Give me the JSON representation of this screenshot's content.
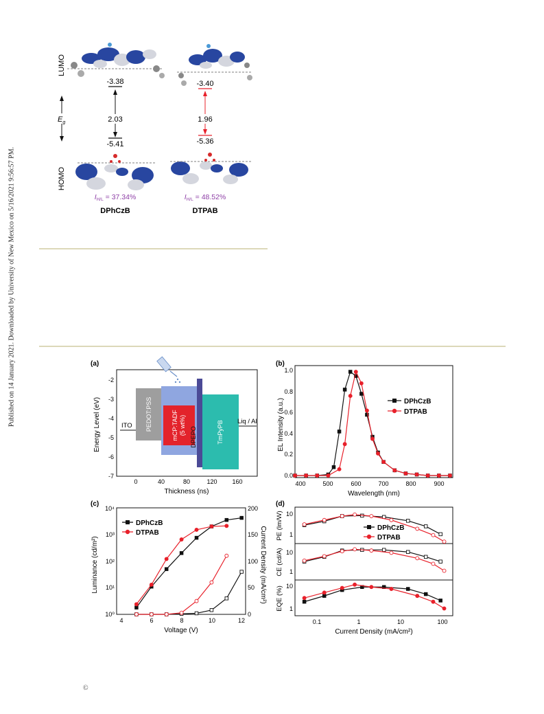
{
  "sidebar_note": "Published on 14 January 2021. Downloaded by University of New Mexico on 5/16/2021 9:56:57 PM.",
  "copyright_symbol": "©",
  "orbital_figure": {
    "lumo_label": "LUMO",
    "homo_label": "HOMO",
    "eg_label": "E",
    "eg_sub": "g",
    "molecules": [
      {
        "name": "DPhCzB",
        "lumo": "-3.38",
        "homo": "-5.41",
        "gap": "2.03",
        "ihl_prefix": "I",
        "ihl_sub": "H/L",
        "ihl_value": " = 37.34%",
        "color": "#111111"
      },
      {
        "name": "DTPAB",
        "lumo": "-3.40",
        "homo": "-5.36",
        "gap": "1.96",
        "ihl_prefix": "I",
        "ihl_sub": "H/L",
        "ihl_value": " = 48.52%",
        "color": "#e8202a"
      }
    ],
    "ihl_color": "#8e3fa6"
  },
  "device_figure": {
    "panel_a": {
      "label": "(a)",
      "ylabel": "Energy Level (eV)",
      "xlabel": "Thickness (ns)",
      "yticks": [
        "-2",
        "-3",
        "-4",
        "-5",
        "-6",
        "-7"
      ],
      "xticks": [
        "0",
        "40",
        "80",
        "120",
        "160"
      ],
      "ito": "ITO",
      "liq": "Liq / Al",
      "layers": {
        "pedot": "PEDOT:PSS",
        "mcp_1": "mCP:TADF",
        "mcp_2": "(5 wt%)",
        "dpepo": "DPEPO",
        "tmpypb": "TmPyPB"
      }
    },
    "panel_b": {
      "label": "(b)",
      "ylabel": "EL Intensity (a.u.)",
      "xlabel": "Wavelength (nm)",
      "yticks": [
        "0.0",
        "0.2",
        "0.4",
        "0.6",
        "0.8",
        "1.0"
      ],
      "xticks": [
        "400",
        "500",
        "600",
        "700",
        "800",
        "900"
      ],
      "legend": [
        "DPhCzB",
        "DTPAB"
      ]
    },
    "panel_c": {
      "label": "(c)",
      "ylabel_left": "Luminance (cd/m²)",
      "ylabel_right": "Current Density (mA/cm²)",
      "xlabel": "Voltage (V)",
      "xticks": [
        "4",
        "6",
        "8",
        "10",
        "12"
      ],
      "yticks_left": [
        "10⁰",
        "10¹",
        "10²",
        "10³",
        "10⁴"
      ],
      "yticks_right": [
        "0",
        "50",
        "100",
        "150",
        "200"
      ],
      "legend": [
        "DPhCzB",
        "DTPAB"
      ]
    },
    "panel_d": {
      "label": "(d)",
      "ylabels": [
        "PE (lm/W)",
        "CE (cd/A)",
        "EQE (%)"
      ],
      "xlabel": "Current Density (mA/cm²)",
      "xticks": [
        "0.1",
        "1",
        "10",
        "100"
      ],
      "yticks": [
        "1",
        "10"
      ],
      "legend": [
        "DPhCzB",
        "DTPAB"
      ]
    }
  },
  "chart_data": [
    {
      "type": "line",
      "panel": "(b)",
      "xlabel": "Wavelength (nm)",
      "ylabel": "EL Intensity (a.u.)",
      "xlim": [
        380,
        950
      ],
      "ylim": [
        0,
        1.0
      ],
      "series": [
        {
          "name": "DPhCzB",
          "color": "#111111",
          "x": [
            380,
            420,
            460,
            500,
            520,
            540,
            560,
            580,
            600,
            620,
            640,
            660,
            680,
            700,
            740,
            780,
            820,
            860,
            900,
            940
          ],
          "y": [
            0.0,
            0.0,
            0.0,
            0.01,
            0.08,
            0.42,
            0.82,
            0.99,
            0.95,
            0.78,
            0.58,
            0.37,
            0.22,
            0.13,
            0.05,
            0.02,
            0.01,
            0.0,
            0.0,
            0.0
          ]
        },
        {
          "name": "DTPAB",
          "color": "#e8202a",
          "x": [
            380,
            420,
            460,
            500,
            540,
            560,
            580,
            600,
            620,
            640,
            660,
            680,
            700,
            740,
            780,
            820,
            860,
            900,
            940
          ],
          "y": [
            0.0,
            0.0,
            0.0,
            0.0,
            0.06,
            0.3,
            0.76,
            0.99,
            0.88,
            0.62,
            0.35,
            0.21,
            0.13,
            0.05,
            0.02,
            0.01,
            0.0,
            0.0,
            0.0
          ]
        }
      ]
    },
    {
      "type": "line",
      "panel": "(c)",
      "xlabel": "Voltage (V)",
      "ylabel": "Luminance (cd/m²)",
      "y2label": "Current Density (mA/cm²)",
      "xlim": [
        4,
        12.5
      ],
      "ylim_log": [
        1,
        10000
      ],
      "y2lim": [
        0,
        200
      ],
      "series": [
        {
          "name": "DPhCzB luminance",
          "color": "#111111",
          "filled": true,
          "x": [
            5,
            6,
            7,
            8,
            9,
            10,
            11,
            12
          ],
          "y": [
            1.8,
            11,
            50,
            200,
            750,
            2000,
            3500,
            4200
          ]
        },
        {
          "name": "DTPAB luminance",
          "color": "#e8202a",
          "filled": true,
          "x": [
            5,
            6,
            7,
            8,
            9,
            10,
            11
          ],
          "y": [
            2.4,
            13,
            120,
            650,
            1500,
            2000,
            2100
          ]
        },
        {
          "name": "DPhCzB current density",
          "color": "#111111",
          "filled": false,
          "axis": "right",
          "x": [
            5,
            6,
            7,
            8,
            9,
            10,
            11,
            12
          ],
          "y": [
            0,
            0,
            0,
            1,
            2,
            8,
            30,
            80
          ]
        },
        {
          "name": "DTPAB current density",
          "color": "#e8202a",
          "filled": false,
          "axis": "right",
          "x": [
            5,
            6,
            7,
            8,
            9,
            10,
            11
          ],
          "y": [
            0,
            0,
            0,
            3,
            25,
            60,
            110
          ]
        }
      ]
    },
    {
      "type": "line",
      "panel": "(d)",
      "xlabel": "Current Density (mA/cm²)",
      "xscale": "log",
      "xlim": [
        0.04,
        150
      ],
      "subplots": [
        {
          "ylabel": "PE (lm/W)",
          "ylim_log": [
            0.5,
            15
          ],
          "series": [
            {
              "name": "DPhCzB",
              "color": "#111111",
              "x": [
                0.05,
                0.15,
                0.4,
                1.2,
                4,
                15,
                40,
                90
              ],
              "y": [
                2.8,
                4,
                6.5,
                6.8,
                6,
                4.2,
                2.5,
                1.2
              ]
            },
            {
              "name": "DTPAB",
              "color": "#e8202a",
              "x": [
                0.05,
                0.15,
                0.4,
                0.8,
                2,
                6,
                25,
                60,
                110
              ],
              "y": [
                3,
                4.5,
                6.5,
                7.5,
                6.5,
                4.5,
                2,
                1.1,
                0.6
              ]
            }
          ]
        },
        {
          "ylabel": "CE (cd/A)",
          "ylim_log": [
            0.8,
            30
          ],
          "series": [
            {
              "name": "DPhCzB",
              "color": "#111111",
              "x": [
                0.05,
                0.15,
                0.4,
                1.2,
                4,
                15,
                40,
                90
              ],
              "y": [
                5,
                8,
                15,
                16,
                16,
                13,
                8,
                5
              ]
            },
            {
              "name": "DTPAB",
              "color": "#e8202a",
              "x": [
                0.05,
                0.15,
                0.4,
                0.8,
                2,
                6,
                25,
                60,
                110
              ],
              "y": [
                5.5,
                8.5,
                14,
                17,
                15,
                12,
                7,
                4,
                2
              ]
            }
          ]
        },
        {
          "ylabel": "EQE (%)",
          "ylim_log": [
            0.5,
            12
          ],
          "series": [
            {
              "name": "DPhCzB",
              "color": "#111111",
              "x": [
                0.05,
                0.15,
                0.4,
                1.2,
                4,
                15,
                40,
                90
              ],
              "y": [
                1.8,
                3,
                5,
                6.5,
                6.5,
                5.5,
                3.5,
                2
              ]
            },
            {
              "name": "DTPAB",
              "color": "#e8202a",
              "x": [
                0.05,
                0.15,
                0.4,
                0.8,
                2,
                6,
                25,
                60,
                110
              ],
              "y": [
                2.5,
                4,
                6,
                8,
                6.5,
                5.5,
                3,
                1.8,
                1
              ]
            }
          ]
        }
      ]
    }
  ]
}
